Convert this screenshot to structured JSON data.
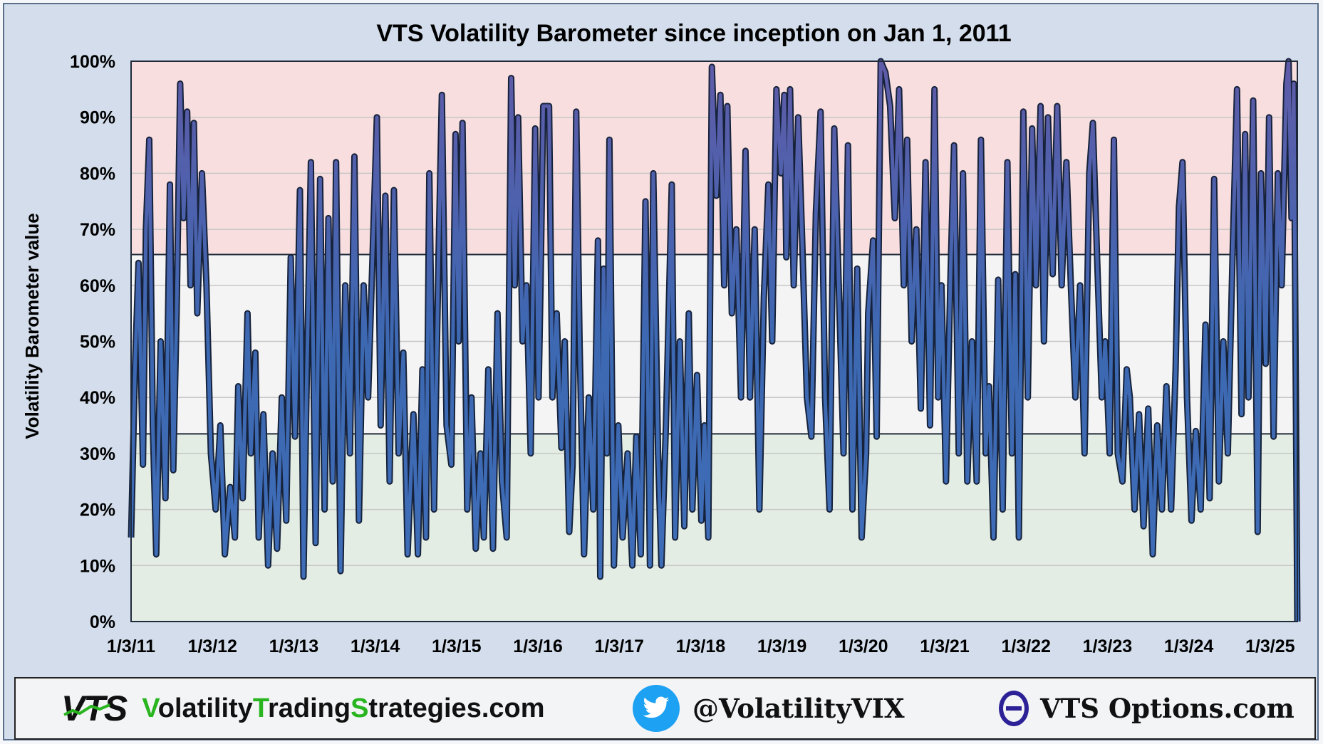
{
  "chart_data": {
    "type": "line",
    "title": "VTS Volatility Barometer since inception on Jan 1, 2011",
    "ylabel": "Volatility Barometer value",
    "xlabel": "",
    "y_ticks": [
      "0%",
      "10%",
      "20%",
      "30%",
      "40%",
      "50%",
      "60%",
      "70%",
      "80%",
      "90%",
      "100%"
    ],
    "x_ticks": [
      "1/3/11",
      "1/3/12",
      "1/3/13",
      "1/3/14",
      "1/3/15",
      "1/3/16",
      "1/3/17",
      "1/3/18",
      "1/3/19",
      "1/3/20",
      "1/3/21",
      "1/3/22",
      "1/3/23",
      "1/3/24",
      "1/3/25"
    ],
    "x_range": [
      "2011-01-03",
      "2025-03-31"
    ],
    "ylim": [
      0,
      100
    ],
    "grid": true,
    "bands": [
      {
        "from": 0,
        "to": 33.5,
        "color": "#e3ede3"
      },
      {
        "from": 33.5,
        "to": 65.5,
        "color": "#f4f4f4"
      },
      {
        "from": 65.5,
        "to": 100,
        "color": "#f8dede"
      }
    ],
    "series": [
      {
        "color": "#3f6eb8",
        "points": [
          [
            "2011-01-03",
            15
          ],
          [
            "2011-01-20",
            45
          ],
          [
            "2011-02-05",
            64
          ],
          [
            "2011-02-25",
            28
          ],
          [
            "2011-03-10",
            70
          ],
          [
            "2011-03-25",
            86
          ],
          [
            "2011-04-10",
            35
          ],
          [
            "2011-04-25",
            12
          ],
          [
            "2011-05-15",
            50
          ],
          [
            "2011-06-05",
            22
          ],
          [
            "2011-06-25",
            78
          ],
          [
            "2011-07-10",
            27
          ],
          [
            "2011-07-25",
            55
          ],
          [
            "2011-08-10",
            96
          ],
          [
            "2011-08-25",
            72
          ],
          [
            "2011-09-10",
            91
          ],
          [
            "2011-09-25",
            60
          ],
          [
            "2011-10-10",
            89
          ],
          [
            "2011-10-25",
            55
          ],
          [
            "2011-11-15",
            80
          ],
          [
            "2011-12-05",
            60
          ],
          [
            "2011-12-25",
            30
          ],
          [
            "2012-01-15",
            20
          ],
          [
            "2012-02-05",
            35
          ],
          [
            "2012-02-25",
            12
          ],
          [
            "2012-03-20",
            24
          ],
          [
            "2012-04-10",
            15
          ],
          [
            "2012-04-25",
            42
          ],
          [
            "2012-05-15",
            22
          ],
          [
            "2012-06-05",
            55
          ],
          [
            "2012-06-20",
            30
          ],
          [
            "2012-07-10",
            48
          ],
          [
            "2012-07-25",
            15
          ],
          [
            "2012-08-15",
            37
          ],
          [
            "2012-09-05",
            10
          ],
          [
            "2012-09-25",
            30
          ],
          [
            "2012-10-15",
            13
          ],
          [
            "2012-11-05",
            40
          ],
          [
            "2012-11-25",
            18
          ],
          [
            "2012-12-15",
            65
          ],
          [
            "2013-01-03",
            33
          ],
          [
            "2013-01-25",
            77
          ],
          [
            "2013-02-10",
            8
          ],
          [
            "2013-02-25",
            45
          ],
          [
            "2013-03-15",
            82
          ],
          [
            "2013-04-05",
            14
          ],
          [
            "2013-04-25",
            79
          ],
          [
            "2013-05-15",
            20
          ],
          [
            "2013-06-01",
            72
          ],
          [
            "2013-06-20",
            25
          ],
          [
            "2013-07-05",
            82
          ],
          [
            "2013-07-25",
            9
          ],
          [
            "2013-08-15",
            60
          ],
          [
            "2013-09-05",
            30
          ],
          [
            "2013-09-25",
            83
          ],
          [
            "2013-10-15",
            18
          ],
          [
            "2013-11-05",
            60
          ],
          [
            "2013-11-25",
            40
          ],
          [
            "2014-01-03",
            90
          ],
          [
            "2014-01-20",
            35
          ],
          [
            "2014-02-10",
            76
          ],
          [
            "2014-03-01",
            25
          ],
          [
            "2014-03-20",
            77
          ],
          [
            "2014-04-10",
            30
          ],
          [
            "2014-05-01",
            48
          ],
          [
            "2014-05-20",
            12
          ],
          [
            "2014-06-15",
            37
          ],
          [
            "2014-07-05",
            12
          ],
          [
            "2014-07-25",
            45
          ],
          [
            "2014-08-10",
            15
          ],
          [
            "2014-08-25",
            80
          ],
          [
            "2014-09-15",
            20
          ],
          [
            "2014-10-05",
            65
          ],
          [
            "2014-10-20",
            94
          ],
          [
            "2014-11-10",
            35
          ],
          [
            "2014-12-01",
            28
          ],
          [
            "2014-12-20",
            87
          ],
          [
            "2015-01-03",
            50
          ],
          [
            "2015-01-20",
            89
          ],
          [
            "2015-02-10",
            20
          ],
          [
            "2015-03-01",
            40
          ],
          [
            "2015-03-20",
            13
          ],
          [
            "2015-04-10",
            30
          ],
          [
            "2015-04-25",
            15
          ],
          [
            "2015-05-15",
            45
          ],
          [
            "2015-06-05",
            13
          ],
          [
            "2015-06-25",
            55
          ],
          [
            "2015-07-15",
            25
          ],
          [
            "2015-08-05",
            15
          ],
          [
            "2015-08-25",
            97
          ],
          [
            "2015-09-10",
            60
          ],
          [
            "2015-09-25",
            90
          ],
          [
            "2015-10-15",
            50
          ],
          [
            "2015-11-01",
            60
          ],
          [
            "2015-11-20",
            30
          ],
          [
            "2015-12-10",
            88
          ],
          [
            "2015-12-25",
            40
          ],
          [
            "2016-01-03",
            60
          ],
          [
            "2016-01-15",
            92
          ],
          [
            "2016-02-10",
            92
          ],
          [
            "2016-02-25",
            40
          ],
          [
            "2016-03-15",
            55
          ],
          [
            "2016-04-05",
            31
          ],
          [
            "2016-04-20",
            50
          ],
          [
            "2016-05-10",
            16
          ],
          [
            "2016-05-25",
            28
          ],
          [
            "2016-06-10",
            91
          ],
          [
            "2016-06-25",
            50
          ],
          [
            "2016-07-15",
            12
          ],
          [
            "2016-08-05",
            40
          ],
          [
            "2016-08-25",
            20
          ],
          [
            "2016-09-15",
            68
          ],
          [
            "2016-09-25",
            8
          ],
          [
            "2016-10-10",
            63
          ],
          [
            "2016-10-25",
            30
          ],
          [
            "2016-11-05",
            86
          ],
          [
            "2016-11-25",
            10
          ],
          [
            "2016-12-15",
            35
          ],
          [
            "2017-01-03",
            15
          ],
          [
            "2017-01-25",
            30
          ],
          [
            "2017-02-15",
            10
          ],
          [
            "2017-03-05",
            33
          ],
          [
            "2017-03-25",
            12
          ],
          [
            "2017-04-15",
            75
          ],
          [
            "2017-05-05",
            10
          ],
          [
            "2017-05-20",
            80
          ],
          [
            "2017-06-10",
            30
          ],
          [
            "2017-06-25",
            10
          ],
          [
            "2017-07-15",
            35
          ],
          [
            "2017-08-10",
            78
          ],
          [
            "2017-08-25",
            15
          ],
          [
            "2017-09-15",
            50
          ],
          [
            "2017-10-05",
            17
          ],
          [
            "2017-10-25",
            55
          ],
          [
            "2017-11-10",
            20
          ],
          [
            "2017-12-01",
            44
          ],
          [
            "2017-12-20",
            18
          ],
          [
            "2018-01-03",
            35
          ],
          [
            "2018-01-20",
            15
          ],
          [
            "2018-02-05",
            99
          ],
          [
            "2018-02-25",
            76
          ],
          [
            "2018-03-15",
            94
          ],
          [
            "2018-04-01",
            60
          ],
          [
            "2018-04-15",
            92
          ],
          [
            "2018-05-05",
            55
          ],
          [
            "2018-05-25",
            70
          ],
          [
            "2018-06-15",
            40
          ],
          [
            "2018-07-05",
            84
          ],
          [
            "2018-07-25",
            40
          ],
          [
            "2018-08-15",
            70
          ],
          [
            "2018-09-05",
            20
          ],
          [
            "2018-09-25",
            58
          ],
          [
            "2018-10-15",
            78
          ],
          [
            "2018-11-01",
            50
          ],
          [
            "2018-11-20",
            95
          ],
          [
            "2018-12-10",
            80
          ],
          [
            "2018-12-25",
            94
          ],
          [
            "2019-01-03",
            65
          ],
          [
            "2019-01-20",
            95
          ],
          [
            "2019-02-05",
            60
          ],
          [
            "2019-02-25",
            90
          ],
          [
            "2019-03-15",
            68
          ],
          [
            "2019-04-05",
            40
          ],
          [
            "2019-04-25",
            33
          ],
          [
            "2019-05-15",
            73
          ],
          [
            "2019-06-05",
            91
          ],
          [
            "2019-06-25",
            40
          ],
          [
            "2019-07-15",
            20
          ],
          [
            "2019-08-05",
            88
          ],
          [
            "2019-08-25",
            60
          ],
          [
            "2019-09-15",
            30
          ],
          [
            "2019-10-05",
            85
          ],
          [
            "2019-10-25",
            20
          ],
          [
            "2019-11-15",
            63
          ],
          [
            "2019-12-05",
            15
          ],
          [
            "2019-12-25",
            30
          ],
          [
            "2020-01-03",
            55
          ],
          [
            "2020-01-25",
            68
          ],
          [
            "2020-02-10",
            33
          ],
          [
            "2020-02-28",
            100
          ],
          [
            "2020-03-20",
            98
          ],
          [
            "2020-04-10",
            92
          ],
          [
            "2020-05-01",
            72
          ],
          [
            "2020-05-20",
            95
          ],
          [
            "2020-06-10",
            60
          ],
          [
            "2020-06-25",
            86
          ],
          [
            "2020-07-15",
            50
          ],
          [
            "2020-08-05",
            70
          ],
          [
            "2020-08-25",
            38
          ],
          [
            "2020-09-15",
            82
          ],
          [
            "2020-10-05",
            35
          ],
          [
            "2020-10-25",
            95
          ],
          [
            "2020-11-10",
            40
          ],
          [
            "2020-11-25",
            60
          ],
          [
            "2020-12-15",
            25
          ],
          [
            "2021-01-03",
            60
          ],
          [
            "2021-01-20",
            85
          ],
          [
            "2021-02-10",
            30
          ],
          [
            "2021-03-01",
            80
          ],
          [
            "2021-03-20",
            25
          ],
          [
            "2021-04-10",
            50
          ],
          [
            "2021-05-01",
            25
          ],
          [
            "2021-05-20",
            86
          ],
          [
            "2021-06-10",
            30
          ],
          [
            "2021-06-25",
            42
          ],
          [
            "2021-07-15",
            15
          ],
          [
            "2021-08-05",
            61
          ],
          [
            "2021-08-25",
            20
          ],
          [
            "2021-09-15",
            82
          ],
          [
            "2021-10-05",
            30
          ],
          [
            "2021-10-20",
            62
          ],
          [
            "2021-11-05",
            15
          ],
          [
            "2021-11-25",
            91
          ],
          [
            "2021-12-15",
            40
          ],
          [
            "2022-01-03",
            88
          ],
          [
            "2022-01-20",
            60
          ],
          [
            "2022-02-10",
            92
          ],
          [
            "2022-02-25",
            50
          ],
          [
            "2022-03-15",
            90
          ],
          [
            "2022-04-05",
            62
          ],
          [
            "2022-04-25",
            92
          ],
          [
            "2022-05-15",
            60
          ],
          [
            "2022-06-05",
            82
          ],
          [
            "2022-06-25",
            60
          ],
          [
            "2022-07-15",
            40
          ],
          [
            "2022-08-05",
            60
          ],
          [
            "2022-08-25",
            30
          ],
          [
            "2022-09-15",
            80
          ],
          [
            "2022-10-01",
            89
          ],
          [
            "2022-10-20",
            65
          ],
          [
            "2022-11-10",
            40
          ],
          [
            "2022-11-25",
            50
          ],
          [
            "2022-12-15",
            30
          ],
          [
            "2023-01-03",
            86
          ],
          [
            "2023-01-20",
            30
          ],
          [
            "2023-02-10",
            25
          ],
          [
            "2023-03-01",
            45
          ],
          [
            "2023-03-15",
            40
          ],
          [
            "2023-04-05",
            20
          ],
          [
            "2023-04-25",
            37
          ],
          [
            "2023-05-15",
            17
          ],
          [
            "2023-06-05",
            38
          ],
          [
            "2023-06-25",
            12
          ],
          [
            "2023-07-15",
            35
          ],
          [
            "2023-08-05",
            20
          ],
          [
            "2023-08-25",
            42
          ],
          [
            "2023-09-15",
            20
          ],
          [
            "2023-10-05",
            45
          ],
          [
            "2023-10-20",
            74
          ],
          [
            "2023-11-05",
            82
          ],
          [
            "2023-11-25",
            40
          ],
          [
            "2023-12-15",
            18
          ],
          [
            "2024-01-03",
            34
          ],
          [
            "2024-01-25",
            20
          ],
          [
            "2024-02-15",
            53
          ],
          [
            "2024-03-05",
            22
          ],
          [
            "2024-03-25",
            79
          ],
          [
            "2024-04-15",
            25
          ],
          [
            "2024-05-05",
            50
          ],
          [
            "2024-05-25",
            30
          ],
          [
            "2024-06-15",
            65
          ],
          [
            "2024-07-05",
            95
          ],
          [
            "2024-07-25",
            37
          ],
          [
            "2024-08-10",
            87
          ],
          [
            "2024-08-25",
            40
          ],
          [
            "2024-09-15",
            93
          ],
          [
            "2024-10-05",
            16
          ],
          [
            "2024-10-20",
            80
          ],
          [
            "2024-11-10",
            46
          ],
          [
            "2024-11-25",
            90
          ],
          [
            "2024-12-15",
            33
          ],
          [
            "2025-01-03",
            80
          ],
          [
            "2025-01-20",
            60
          ],
          [
            "2025-02-10",
            96
          ],
          [
            "2025-02-20",
            100
          ],
          [
            "2025-03-05",
            72
          ],
          [
            "2025-03-15",
            96
          ],
          [
            "2025-03-31",
            0
          ]
        ]
      }
    ]
  },
  "footer": {
    "logo_text": "VTS",
    "site_parts": [
      "V",
      "olatility",
      "T",
      "rading",
      "S",
      "trategies.com"
    ],
    "twitter_handle": "@VolatilityVIX",
    "options_site": "VTS Options.com",
    "colors": {
      "brand_green": "#29b51f",
      "twitter_blue": "#1da1f2",
      "theta_purple": "#2c2196"
    },
    "icons": [
      "vts-logo-icon",
      "twitter-bird-icon",
      "theta-icon"
    ]
  }
}
